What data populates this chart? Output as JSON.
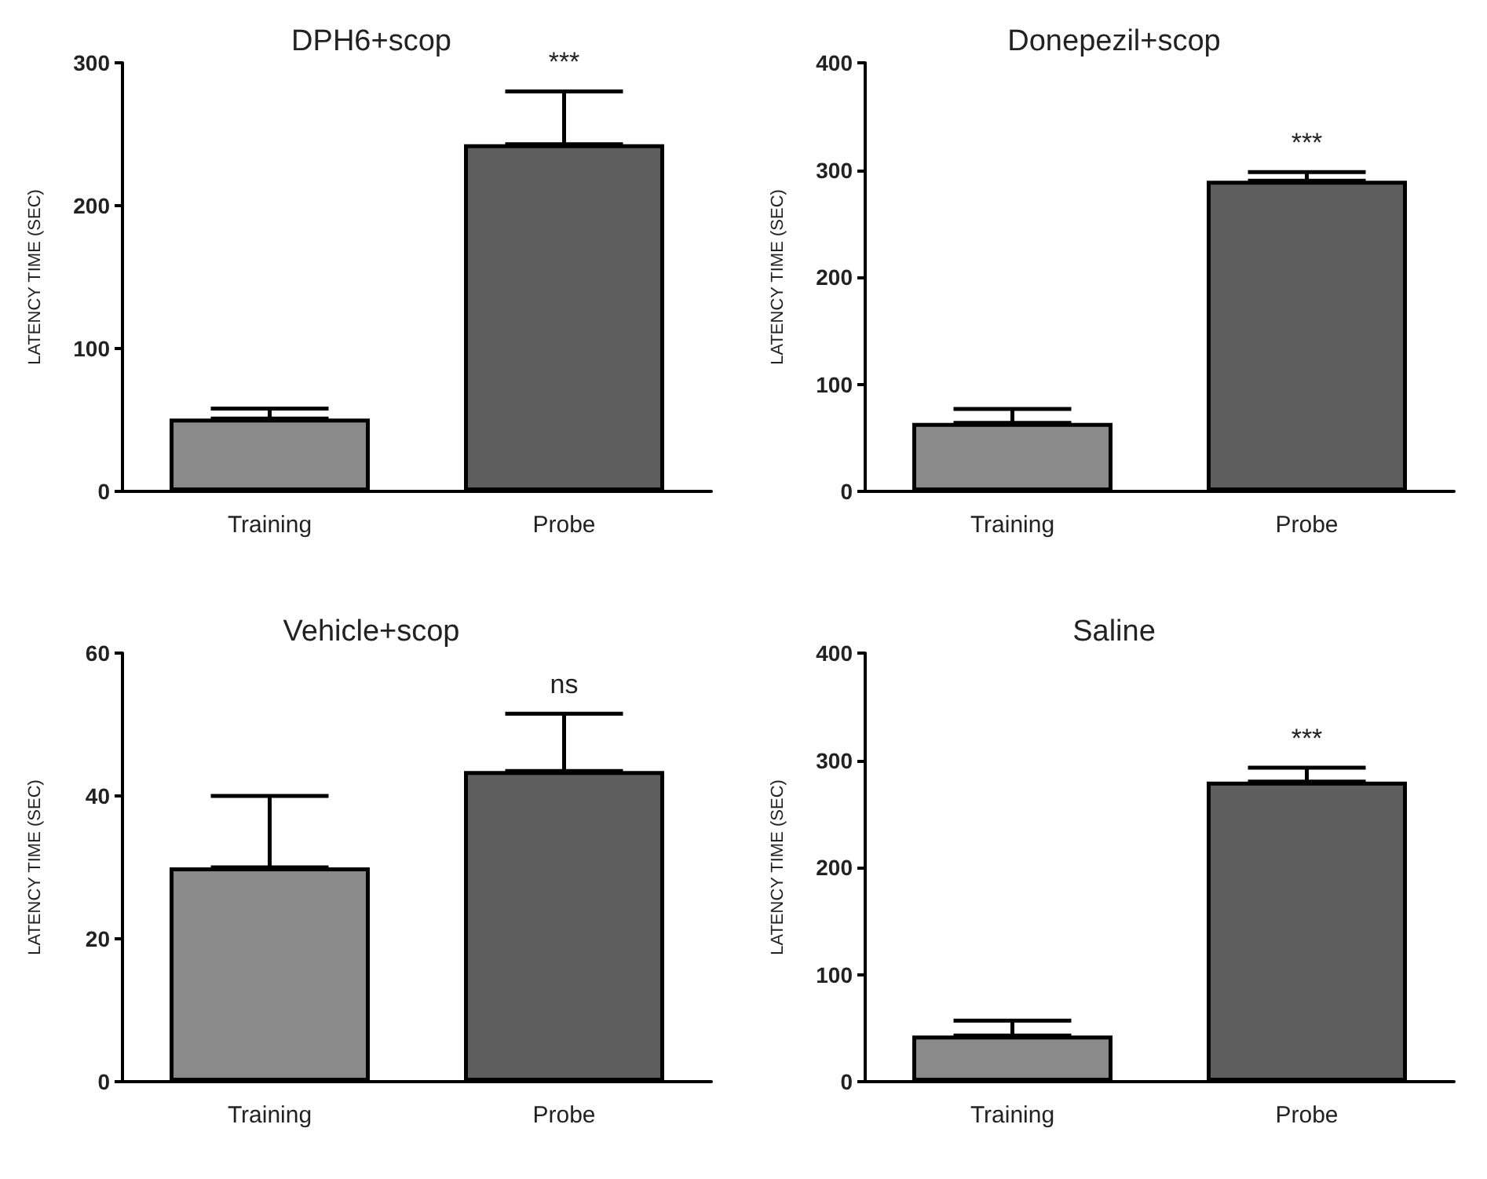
{
  "chart_data": [
    {
      "type": "bar",
      "title": "DPH6+scop",
      "ylabel": "LATENCY TIME (SEC)",
      "categories": [
        "Training",
        "Probe"
      ],
      "values": [
        51,
        243
      ],
      "errors": [
        [
          51,
          58
        ],
        [
          243,
          280
        ]
      ],
      "colors": [
        "#8a8a8a",
        "#5e5e5e"
      ],
      "ylim": [
        0,
        300
      ],
      "yticks": [
        0,
        100,
        200,
        300
      ],
      "grid": false,
      "annotations": [
        {
          "text": "***",
          "x": "Probe",
          "y": 280
        }
      ]
    },
    {
      "type": "bar",
      "title": "Donepezil+scop",
      "ylabel": "LATENCY TIME (SEC)",
      "categories": [
        "Training",
        "Probe"
      ],
      "values": [
        64,
        290
      ],
      "errors": [
        [
          64,
          77
        ],
        [
          290,
          298
        ]
      ],
      "colors": [
        "#8a8a8a",
        "#5e5e5e"
      ],
      "ylim": [
        0,
        400
      ],
      "yticks": [
        0,
        100,
        200,
        300,
        400
      ],
      "grid": false,
      "annotations": [
        {
          "text": "***",
          "x": "Probe",
          "y": 298
        }
      ]
    },
    {
      "type": "bar",
      "title": "Vehicle+scop",
      "ylabel": "LATENCY TIME (SEC)",
      "categories": [
        "Training",
        "Probe"
      ],
      "values": [
        30,
        43.5
      ],
      "errors": [
        [
          30,
          40
        ],
        [
          43.5,
          51.5
        ]
      ],
      "colors": [
        "#8a8a8a",
        "#5e5e5e"
      ],
      "ylim": [
        0,
        60
      ],
      "yticks": [
        0,
        20,
        40,
        60
      ],
      "grid": false,
      "annotations": [
        {
          "text": "ns",
          "x": "Probe",
          "y": 51.5
        }
      ]
    },
    {
      "type": "bar",
      "title": "Saline",
      "ylabel": "LATENCY TIME (SEC)",
      "categories": [
        "Training",
        "Probe"
      ],
      "values": [
        43,
        280
      ],
      "errors": [
        [
          43,
          57
        ],
        [
          280,
          293
        ]
      ],
      "colors": [
        "#8a8a8a",
        "#5e5e5e"
      ],
      "ylim": [
        0,
        400
      ],
      "yticks": [
        0,
        100,
        200,
        300,
        400
      ],
      "grid": false,
      "annotations": [
        {
          "text": "***",
          "x": "Probe",
          "y": 293
        }
      ]
    }
  ]
}
